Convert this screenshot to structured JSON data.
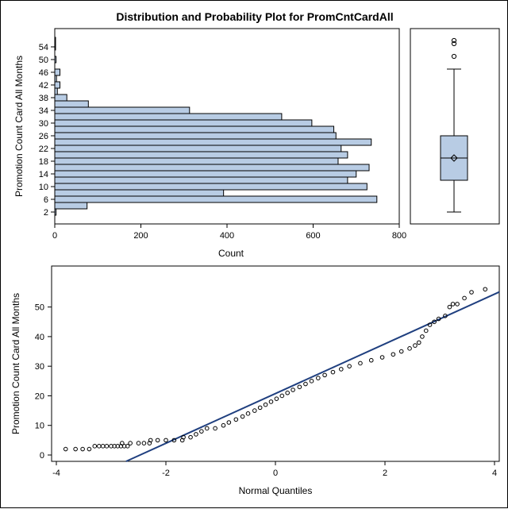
{
  "title": "Distribution and Probability Plot for PromCntCardAll",
  "chart_data": [
    {
      "type": "bar",
      "orientation": "horizontal",
      "name": "histogram",
      "xlabel": "Count",
      "ylabel": "Promotion Count Card All Months",
      "xlim": [
        0,
        800
      ],
      "xticks": [
        0,
        200,
        400,
        600,
        800
      ],
      "yticks": [
        2,
        6,
        10,
        14,
        18,
        22,
        26,
        30,
        34,
        38,
        42,
        46,
        50,
        54
      ],
      "bin_width": 2,
      "bin_midpoints": [
        2,
        4,
        6,
        8,
        10,
        12,
        14,
        16,
        18,
        20,
        22,
        24,
        26,
        28,
        30,
        32,
        34,
        36,
        38,
        40,
        42,
        44,
        46,
        48,
        50,
        52,
        54,
        56
      ],
      "counts": [
        3,
        75,
        748,
        392,
        725,
        680,
        700,
        730,
        658,
        680,
        665,
        735,
        653,
        648,
        597,
        527,
        313,
        78,
        28,
        6,
        12,
        4,
        12,
        0,
        3,
        0,
        1,
        1
      ],
      "fill_color": "#b8cce4",
      "edge_color": "#000000"
    },
    {
      "type": "box",
      "name": "boxplot",
      "min": 2,
      "q1": 12,
      "median": 19,
      "mean": 19,
      "q3": 26,
      "whisker_high": 47,
      "outliers": [
        51,
        55,
        56
      ],
      "fill_color": "#b8cce4"
    },
    {
      "type": "scatter",
      "name": "normal-probability-plot",
      "xlabel": "Normal Quantiles",
      "ylabel": "Promotion Count Card All Months",
      "xlim": [
        -4,
        4
      ],
      "ylim": [
        0,
        55
      ],
      "xticks": [
        -4,
        -2,
        0,
        2,
        4
      ],
      "yticks": [
        0,
        10,
        20,
        30,
        40,
        50
      ],
      "reference_line": {
        "intercept": 19,
        "slope": 8.8,
        "color": "#1f3f7f"
      },
      "points": [
        [
          -3.83,
          2
        ],
        [
          -3.65,
          2
        ],
        [
          -3.52,
          2
        ],
        [
          -3.4,
          2
        ],
        [
          -3.3,
          3
        ],
        [
          -3.22,
          3
        ],
        [
          -3.15,
          3
        ],
        [
          -3.08,
          3
        ],
        [
          -3.0,
          3
        ],
        [
          -2.94,
          3
        ],
        [
          -2.88,
          3
        ],
        [
          -2.82,
          3
        ],
        [
          -2.76,
          3
        ],
        [
          -2.7,
          3
        ],
        [
          -2.8,
          4
        ],
        [
          -2.65,
          4
        ],
        [
          -2.5,
          4
        ],
        [
          -2.4,
          4
        ],
        [
          -2.3,
          4
        ],
        [
          -2.28,
          5
        ],
        [
          -2.15,
          5
        ],
        [
          -2.0,
          5
        ],
        [
          -1.85,
          5
        ],
        [
          -1.7,
          5
        ],
        [
          -1.68,
          6
        ],
        [
          -1.55,
          6
        ],
        [
          -1.45,
          7
        ],
        [
          -1.35,
          8
        ],
        [
          -1.25,
          9
        ],
        [
          -1.1,
          9
        ],
        [
          -0.95,
          10
        ],
        [
          -0.85,
          11
        ],
        [
          -0.72,
          12
        ],
        [
          -0.6,
          13
        ],
        [
          -0.5,
          14
        ],
        [
          -0.38,
          15
        ],
        [
          -0.28,
          16
        ],
        [
          -0.18,
          17
        ],
        [
          -0.08,
          18
        ],
        [
          0.02,
          19
        ],
        [
          0.12,
          20
        ],
        [
          0.22,
          21
        ],
        [
          0.32,
          22
        ],
        [
          0.44,
          23
        ],
        [
          0.55,
          24
        ],
        [
          0.66,
          25
        ],
        [
          0.78,
          26
        ],
        [
          0.9,
          27
        ],
        [
          1.05,
          28
        ],
        [
          1.2,
          29
        ],
        [
          1.35,
          30
        ],
        [
          1.55,
          31
        ],
        [
          1.75,
          32
        ],
        [
          1.95,
          33
        ],
        [
          2.15,
          34
        ],
        [
          2.3,
          35
        ],
        [
          2.45,
          36
        ],
        [
          2.55,
          37
        ],
        [
          2.62,
          38
        ],
        [
          2.68,
          40
        ],
        [
          2.75,
          42
        ],
        [
          2.82,
          44
        ],
        [
          2.9,
          45
        ],
        [
          2.98,
          46
        ],
        [
          3.1,
          47
        ],
        [
          3.18,
          50
        ],
        [
          3.24,
          51
        ],
        [
          3.32,
          51
        ],
        [
          3.45,
          53
        ],
        [
          3.58,
          55
        ],
        [
          3.83,
          56
        ]
      ]
    }
  ]
}
